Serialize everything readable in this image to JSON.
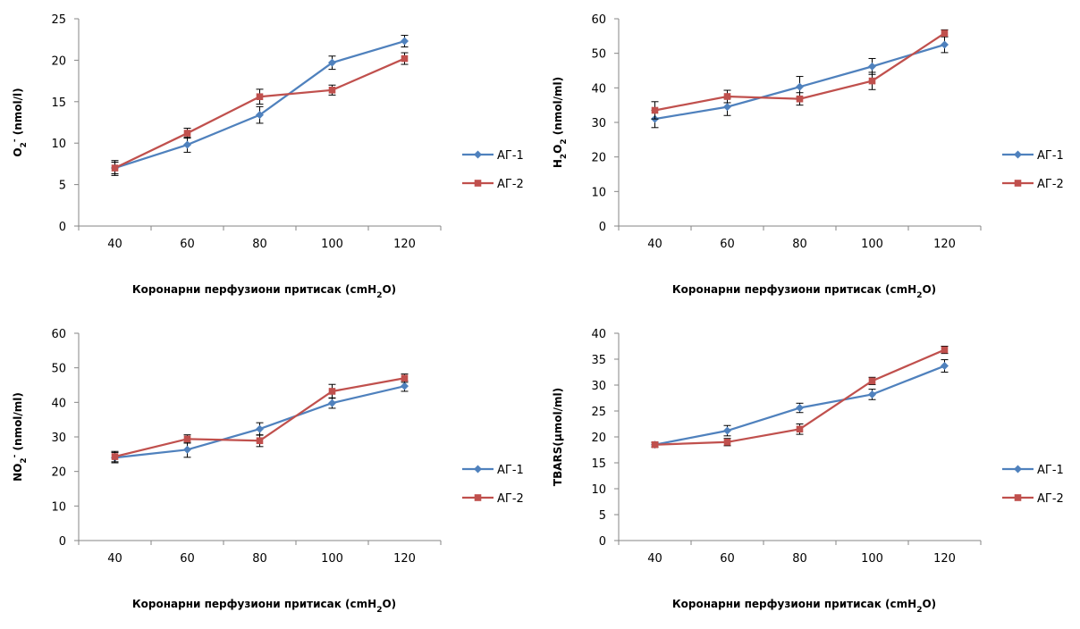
{
  "colors": {
    "series1": "#4f81bd",
    "series2": "#c0504d",
    "axis": "#868686"
  },
  "chart_data": [
    {
      "type": "line",
      "categories": [
        "40",
        "60",
        "80",
        "100",
        "120"
      ],
      "ylabel": "O2- (nmol/l)",
      "xlabel": "Коронарни перфузиони притисак (cmH2O)",
      "ylim": [
        0,
        25
      ],
      "yticks": [
        0,
        5,
        10,
        15,
        20,
        25
      ],
      "legend": "right",
      "series": [
        {
          "name": "АГ-1",
          "values": [
            7.0,
            9.8,
            13.4,
            19.7,
            22.3
          ],
          "errors": [
            0.9,
            0.9,
            1.0,
            0.8,
            0.7
          ]
        },
        {
          "name": "АГ-2",
          "values": [
            7.0,
            11.2,
            15.6,
            16.4,
            20.2
          ],
          "errors": [
            0.7,
            0.6,
            0.9,
            0.6,
            0.7
          ]
        }
      ]
    },
    {
      "type": "line",
      "categories": [
        "40",
        "60",
        "80",
        "100",
        "120"
      ],
      "ylabel": "H2O2 (nmol/ml)",
      "xlabel": "Коронарни перфузиони притисак (cmH2O)",
      "ylim": [
        0,
        60
      ],
      "yticks": [
        0,
        10,
        20,
        30,
        40,
        50,
        60
      ],
      "legend": "right",
      "series": [
        {
          "name": "АГ-1",
          "values": [
            31.0,
            34.5,
            40.3,
            46.2,
            52.5
          ],
          "errors": [
            2.5,
            2.5,
            3.0,
            2.3,
            2.3
          ]
        },
        {
          "name": "АГ-2",
          "values": [
            33.5,
            37.5,
            36.8,
            42.0,
            55.8
          ],
          "errors": [
            2.5,
            1.8,
            1.8,
            2.5,
            1.0
          ]
        }
      ]
    },
    {
      "type": "line",
      "categories": [
        "40",
        "60",
        "80",
        "100",
        "120"
      ],
      "ylabel": "NO2- (nmol/ml)",
      "xlabel": "Коронарни перфузиони притисак (cmH2O)",
      "ylim": [
        0,
        60
      ],
      "yticks": [
        0,
        10,
        20,
        30,
        40,
        50,
        60
      ],
      "legend": "right",
      "series": [
        {
          "name": "АГ-1",
          "values": [
            24.0,
            26.3,
            32.3,
            39.8,
            44.7
          ],
          "errors": [
            1.5,
            2.2,
            1.8,
            1.5,
            1.5
          ]
        },
        {
          "name": "АГ-2",
          "values": [
            24.3,
            29.4,
            28.9,
            43.2,
            47.0
          ],
          "errors": [
            1.5,
            1.2,
            1.7,
            2.0,
            1.2
          ]
        }
      ]
    },
    {
      "type": "line",
      "categories": [
        "40",
        "60",
        "80",
        "100",
        "120"
      ],
      "ylabel": "TBARS(µmol/ml)",
      "xlabel": "Коронарни перфузиони притисак (cmH2O)",
      "ylim": [
        0,
        40
      ],
      "yticks": [
        0,
        5,
        10,
        15,
        20,
        25,
        30,
        35,
        40
      ],
      "legend": "right",
      "series": [
        {
          "name": "АГ-1",
          "values": [
            18.5,
            21.2,
            25.6,
            28.2,
            33.7
          ],
          "errors": [
            0.5,
            1.0,
            0.9,
            1.0,
            1.2
          ]
        },
        {
          "name": "АГ-2",
          "values": [
            18.5,
            19.0,
            21.5,
            30.8,
            36.8
          ],
          "errors": [
            0.4,
            0.7,
            1.0,
            0.7,
            0.7
          ]
        }
      ]
    }
  ]
}
